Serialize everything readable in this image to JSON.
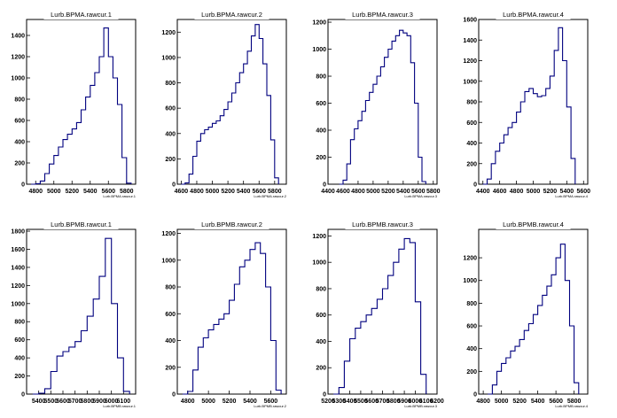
{
  "colors": {
    "line": "#00007f",
    "frame": "#000000",
    "background": "#ffffff"
  },
  "chart_data": [
    {
      "type": "line",
      "step": true,
      "title": "Lurb.BPMA.rawcur.1",
      "xlabel": "Lurb.BPMA.rawcur.1",
      "xlim": [
        4700,
        5900
      ],
      "ylim": [
        0,
        1550
      ],
      "xticks": [
        4800,
        5000,
        5200,
        5400,
        5600,
        5800
      ],
      "yticks": [
        0,
        200,
        400,
        600,
        800,
        1000,
        1200,
        1400
      ],
      "series": [
        {
          "x": [
            4750,
            4800,
            4850,
            4900,
            4950,
            5000,
            5050,
            5100,
            5150,
            5200,
            5250,
            5300,
            5350,
            5400,
            5450,
            5500,
            5550,
            5600,
            5650,
            5700,
            5750,
            5800,
            5850
          ],
          "y": [
            0,
            5,
            30,
            100,
            190,
            270,
            350,
            420,
            470,
            520,
            580,
            700,
            820,
            930,
            1050,
            1200,
            1470,
            1200,
            1000,
            750,
            250,
            10,
            0
          ]
        }
      ]
    },
    {
      "type": "line",
      "step": true,
      "title": "Lurb.BPMA.rawcur.2",
      "xlabel": "Lurb.BPMA.rawcur.2",
      "xlim": [
        4550,
        5950
      ],
      "ylim": [
        0,
        1300
      ],
      "xticks": [
        4600,
        4800,
        5000,
        5200,
        5400,
        5600,
        5800
      ],
      "yticks": [
        0,
        200,
        400,
        600,
        800,
        1000,
        1200
      ],
      "series": [
        {
          "x": [
            4600,
            4650,
            4700,
            4750,
            4800,
            4850,
            4900,
            4950,
            5000,
            5050,
            5100,
            5150,
            5200,
            5250,
            5300,
            5350,
            5400,
            5450,
            5500,
            5550,
            5600,
            5650,
            5700,
            5750,
            5800,
            5850
          ],
          "y": [
            0,
            10,
            80,
            220,
            340,
            400,
            430,
            450,
            480,
            500,
            540,
            590,
            650,
            720,
            800,
            880,
            950,
            1050,
            1170,
            1260,
            1150,
            950,
            700,
            350,
            50,
            0
          ]
        }
      ]
    },
    {
      "type": "line",
      "step": true,
      "title": "Lurb.BPMA.rawcur.3",
      "xlabel": "Lurb.BPMA.rawcur.3",
      "xlim": [
        4400,
        5850
      ],
      "ylim": [
        0,
        1220
      ],
      "xticks": [
        4400,
        4600,
        4800,
        5000,
        5200,
        5400,
        5600,
        5800
      ],
      "yticks": [
        0,
        200,
        400,
        600,
        800,
        1000,
        1200
      ],
      "series": [
        {
          "x": [
            4550,
            4600,
            4650,
            4700,
            4750,
            4800,
            4850,
            4900,
            4950,
            5000,
            5050,
            5100,
            5150,
            5200,
            5250,
            5300,
            5350,
            5400,
            5450,
            5500,
            5550,
            5600,
            5650,
            5700
          ],
          "y": [
            0,
            30,
            150,
            330,
            410,
            470,
            540,
            620,
            680,
            740,
            800,
            870,
            940,
            1000,
            1060,
            1100,
            1140,
            1120,
            1100,
            900,
            600,
            200,
            20,
            0
          ]
        }
      ]
    },
    {
      "type": "line",
      "step": true,
      "title": "Lurb.BPMA.rawcur.4",
      "xlabel": "Lurb.BPMA.rawcur.4",
      "xlim": [
        4350,
        5650
      ],
      "ylim": [
        0,
        1600
      ],
      "xticks": [
        4400,
        4600,
        4800,
        5000,
        5200,
        5400,
        5600
      ],
      "yticks": [
        0,
        200,
        400,
        600,
        800,
        1000,
        1200,
        1400,
        1600
      ],
      "series": [
        {
          "x": [
            4400,
            4450,
            4500,
            4550,
            4600,
            4650,
            4700,
            4750,
            4800,
            4850,
            4900,
            4950,
            5000,
            5050,
            5100,
            5150,
            5200,
            5250,
            5300,
            5350,
            5400,
            5450,
            5500
          ],
          "y": [
            0,
            50,
            200,
            320,
            400,
            480,
            550,
            600,
            700,
            800,
            900,
            930,
            880,
            850,
            860,
            930,
            1050,
            1300,
            1520,
            1200,
            750,
            250,
            0
          ]
        }
      ]
    },
    {
      "type": "line",
      "step": true,
      "title": "Lurb.BPMB.rawcur.1",
      "xlabel": "Lurb.BPMB.rawcur.1",
      "xlim": [
        5300,
        6200
      ],
      "ylim": [
        0,
        1820
      ],
      "xticks": [
        5400,
        5500,
        5600,
        5700,
        5800,
        5900,
        6000,
        6100
      ],
      "yticks": [
        0,
        200,
        400,
        600,
        800,
        1000,
        1200,
        1400,
        1600,
        1800
      ],
      "series": [
        {
          "x": [
            5350,
            5400,
            5450,
            5500,
            5550,
            5600,
            5650,
            5700,
            5750,
            5800,
            5850,
            5900,
            5950,
            6000,
            6050,
            6100,
            6150
          ],
          "y": [
            0,
            10,
            60,
            250,
            420,
            470,
            520,
            580,
            700,
            860,
            1050,
            1300,
            1720,
            1000,
            400,
            30,
            0
          ]
        }
      ]
    },
    {
      "type": "line",
      "step": true,
      "title": "Lurb.BPMB.rawcur.2",
      "xlabel": "Lurb.BPMB.rawcur.2",
      "xlim": [
        4700,
        5750
      ],
      "ylim": [
        0,
        1230
      ],
      "xticks": [
        4800,
        5000,
        5200,
        5400,
        5600
      ],
      "yticks": [
        0,
        200,
        400,
        600,
        800,
        1000,
        1200
      ],
      "series": [
        {
          "x": [
            4750,
            4800,
            4850,
            4900,
            4950,
            5000,
            5050,
            5100,
            5150,
            5200,
            5250,
            5300,
            5350,
            5400,
            5450,
            5500,
            5550,
            5600,
            5650,
            5700
          ],
          "y": [
            0,
            20,
            180,
            350,
            420,
            480,
            520,
            560,
            600,
            700,
            820,
            950,
            1000,
            1080,
            1130,
            1050,
            800,
            400,
            30,
            0
          ]
        }
      ]
    },
    {
      "type": "line",
      "step": true,
      "title": "Lurb.BPMB.rawcur.3",
      "xlabel": "Lurb.BPMB.rawcur.3",
      "xlim": [
        5200,
        6200
      ],
      "ylim": [
        0,
        1250
      ],
      "xticks": [
        5200,
        5300,
        5400,
        5500,
        5600,
        5700,
        5800,
        5900,
        6000,
        6100,
        6200
      ],
      "yticks": [
        0,
        200,
        400,
        600,
        800,
        1000,
        1200
      ],
      "series": [
        {
          "x": [
            5250,
            5300,
            5350,
            5400,
            5450,
            5500,
            5550,
            5600,
            5650,
            5700,
            5750,
            5800,
            5850,
            5900,
            5950,
            6000,
            6050,
            6100
          ],
          "y": [
            0,
            50,
            250,
            420,
            500,
            550,
            600,
            650,
            720,
            800,
            900,
            1000,
            1100,
            1180,
            1150,
            700,
            150,
            0
          ]
        }
      ]
    },
    {
      "type": "line",
      "step": true,
      "title": "Lurb.BPMB.rawcur.4",
      "xlabel": "Lurb.BPMB.rawcur.4",
      "xlim": [
        4750,
        5950
      ],
      "ylim": [
        0,
        1450
      ],
      "xticks": [
        4800,
        5000,
        5200,
        5400,
        5600,
        5800
      ],
      "yticks": [
        0,
        200,
        400,
        600,
        800,
        1000,
        1200
      ],
      "series": [
        {
          "x": [
            4850,
            4900,
            4950,
            5000,
            5050,
            5100,
            5150,
            5200,
            5250,
            5300,
            5350,
            5400,
            5450,
            5500,
            5550,
            5600,
            5650,
            5700,
            5750,
            5800,
            5850
          ],
          "y": [
            0,
            80,
            200,
            270,
            320,
            380,
            420,
            480,
            560,
            620,
            700,
            780,
            870,
            950,
            1050,
            1200,
            1320,
            1000,
            600,
            100,
            0
          ]
        }
      ]
    }
  ]
}
